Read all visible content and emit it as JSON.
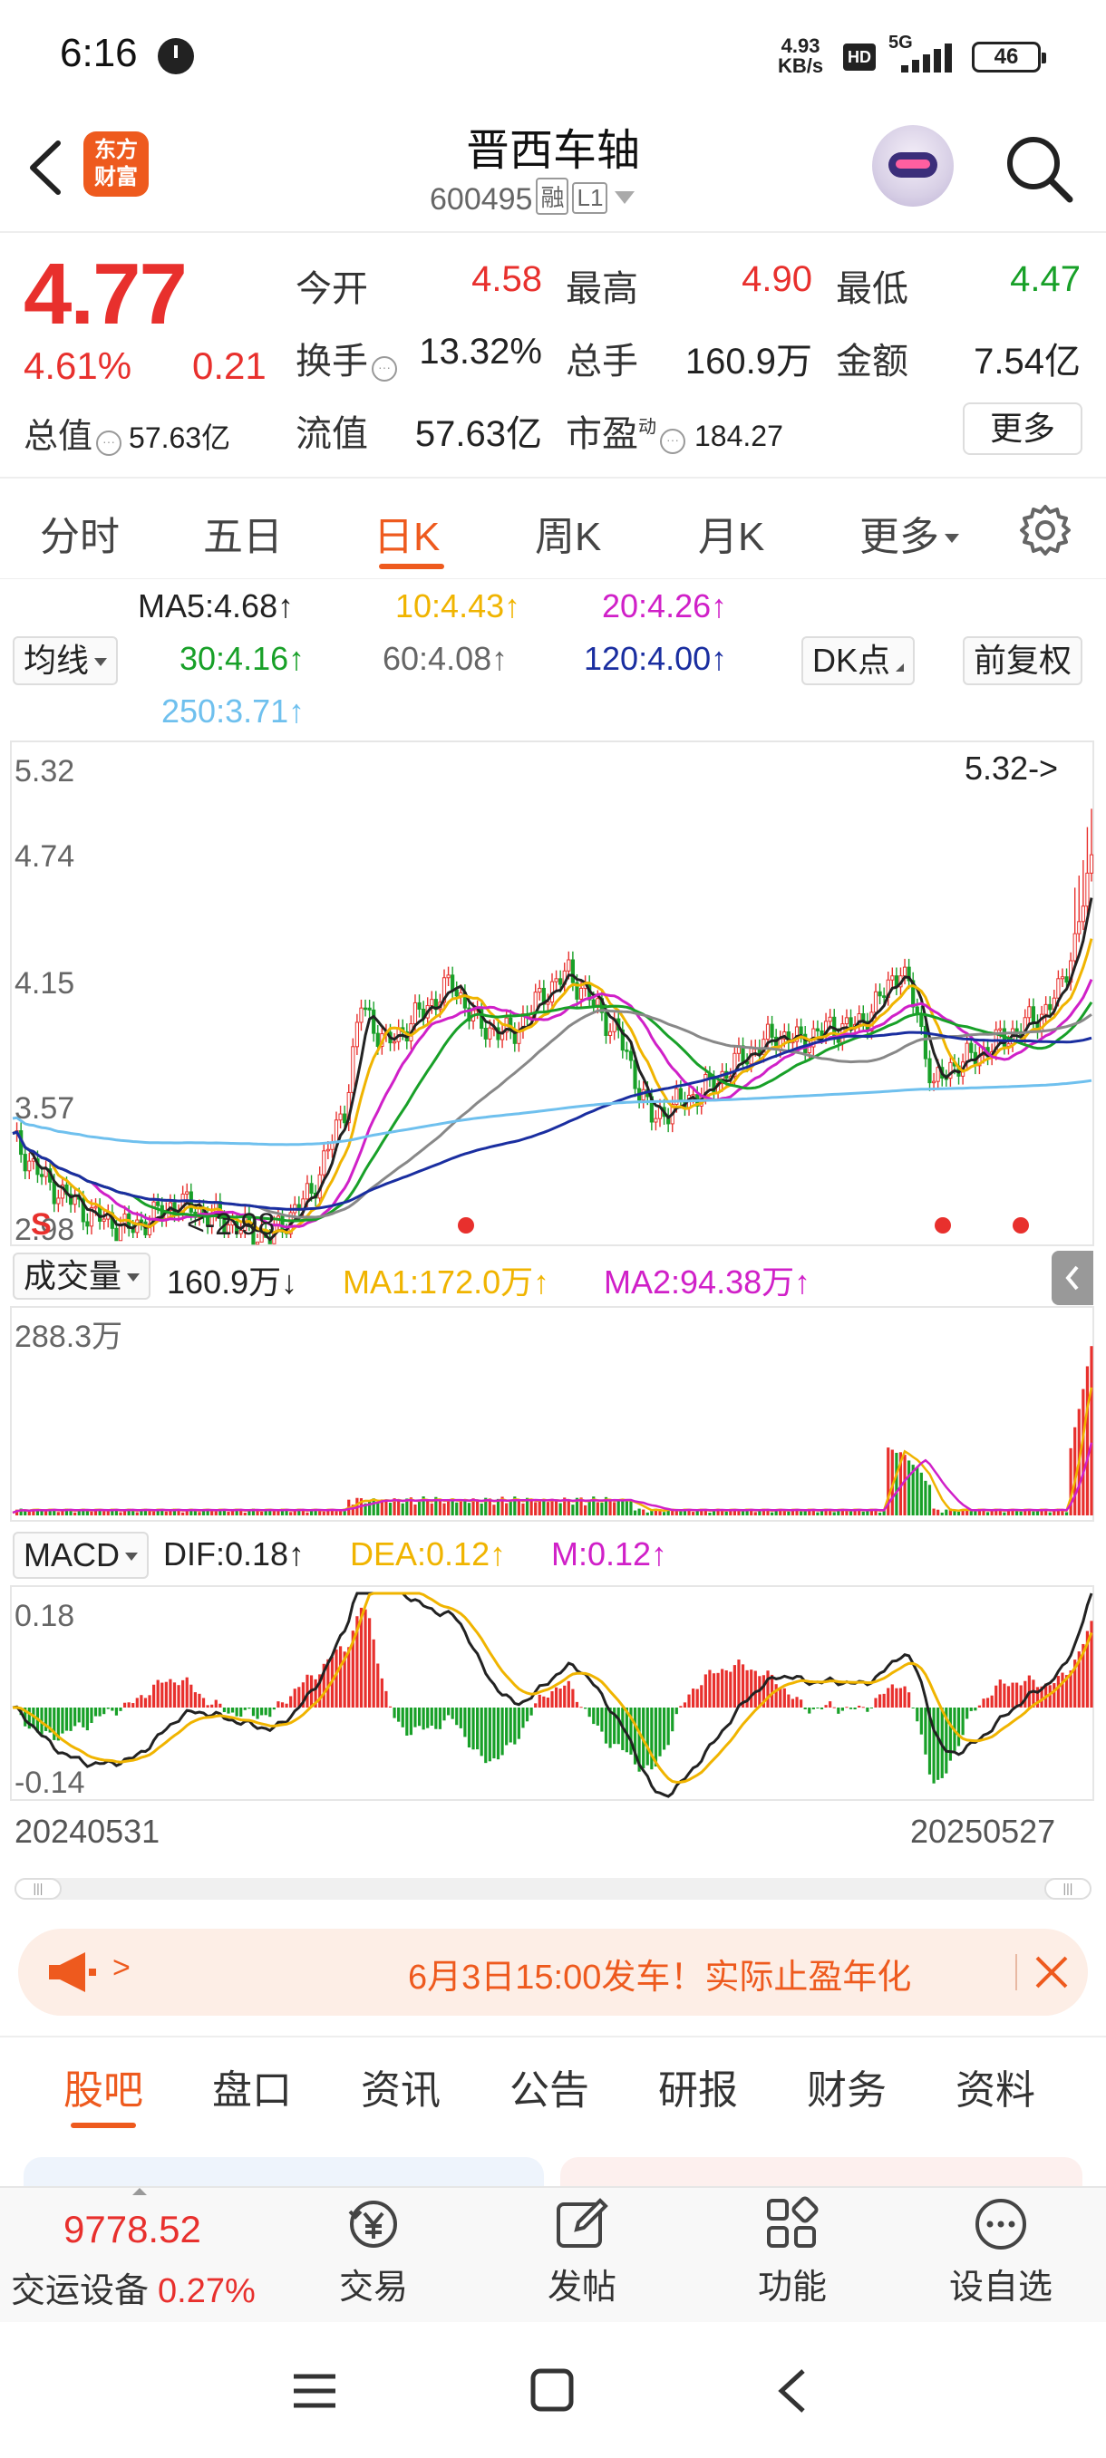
{
  "status_bar": {
    "time": "6:16",
    "net_speed_value": "4.93",
    "net_speed_unit": "KB/s",
    "hd": "HD",
    "network": "5G",
    "battery": "46"
  },
  "header": {
    "logo_text_line1": "东方",
    "logo_text_line2": "财富",
    "title": "晋西车轴",
    "code": "600495",
    "tag_margin": "融",
    "tag_level": "L1"
  },
  "quote": {
    "price": "4.77",
    "change_pct": "4.61%",
    "change": "0.21",
    "open_label": "今开",
    "open": "4.58",
    "high_label": "最高",
    "high": "4.90",
    "low_label": "最低",
    "low": "4.47",
    "turnover_label": "换手",
    "turnover": "13.32%",
    "volume_label": "总手",
    "volume": "160.9万",
    "amount_label": "金额",
    "amount": "7.54亿",
    "mcap_label": "总值",
    "mcap": "57.63亿",
    "float_label": "流值",
    "float_cap": "57.63亿",
    "pe_label": "市盈",
    "pe_sup": "动",
    "pe": "184.27",
    "more": "更多"
  },
  "period_tabs": [
    "分时",
    "五日",
    "日K",
    "周K",
    "月K",
    "更多"
  ],
  "indicators": {
    "ma_selector": "均线",
    "ma5": "MA5:4.68↑",
    "ma10": "10:4.43↑",
    "ma20": "20:4.26↑",
    "ma30": "30:4.16↑",
    "ma60": "60:4.08↑",
    "ma120": "120:4.00↑",
    "ma250": "250:3.71↑",
    "dk": "DK点",
    "adjust": "前复权"
  },
  "colors": {
    "up": "#e8302d",
    "down": "#18a028",
    "accent": "#ee5a1e",
    "ma5": "#222222",
    "ma10": "#f0b400",
    "ma20": "#d020c8",
    "ma30": "#18a028",
    "ma60": "#888888",
    "ma120": "#1a2ea0",
    "ma250": "#6fc0ee"
  },
  "chart_data": [
    {
      "type": "candlestick",
      "title": "日K",
      "y_labels": [
        "5.32",
        "4.74",
        "4.15",
        "3.57",
        "2.98"
      ],
      "ylim": [
        2.98,
        5.32
      ],
      "max_marker": "5.32->",
      "min_marker": "<-2.98",
      "signal_marker": "S",
      "x_start": "20240531",
      "x_end": "20250527",
      "series": [
        {
          "name": "MA5",
          "last": 4.68
        },
        {
          "name": "10",
          "last": 4.43
        },
        {
          "name": "20",
          "last": 4.26
        },
        {
          "name": "30",
          "last": 4.16
        },
        {
          "name": "60",
          "last": 4.08
        },
        {
          "name": "120",
          "last": 4.0
        },
        {
          "name": "250",
          "last": 3.71
        }
      ]
    },
    {
      "type": "bar",
      "title": "成交量",
      "y_max_label": "288.3万",
      "value": "160.9万↓",
      "ma1": "MA1:172.0万↑",
      "ma2": "MA2:94.38万↑"
    },
    {
      "type": "bar",
      "title": "MACD",
      "y_labels": [
        "0.18",
        "-0.14"
      ],
      "ylim": [
        -0.14,
        0.18
      ],
      "dif": "DIF:0.18↑",
      "dea": "DEA:0.12↑",
      "m": "M:0.12↑"
    }
  ],
  "volume": {
    "selector": "成交量"
  },
  "macd": {
    "selector": "MACD"
  },
  "banner": {
    "arrow": ">",
    "text": "6月3日15:00发车！实际止盈年化"
  },
  "bottom_tabs": [
    "股吧",
    "盘口",
    "资讯",
    "公告",
    "研报",
    "财务",
    "资料"
  ],
  "toolbar": {
    "index_value": "9778.52",
    "index_name": "交运设备",
    "index_pct": "0.27%",
    "trade": "交易",
    "post": "发帖",
    "functions": "功能",
    "watchlist": "设自选"
  }
}
